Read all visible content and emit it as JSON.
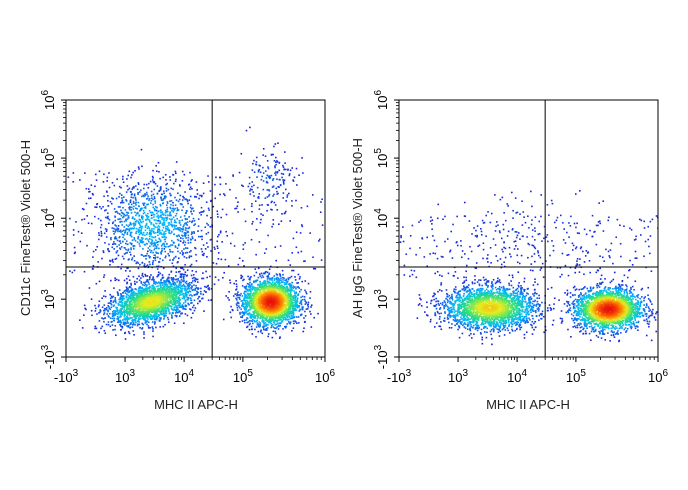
{
  "chart_data": [
    {
      "type": "scatter",
      "subtype": "flow-cytometry-density-plot",
      "xlabel": "MHC II APC-H",
      "ylabel": "CD11c FineTest® Violet 500-H",
      "x_scale": "biexponential",
      "y_scale": "biexponential",
      "xlim": [
        -1000,
        1000000
      ],
      "ylim": [
        -1000,
        1000000
      ],
      "x_ticks": [
        {
          "value": -1000,
          "base": "-10",
          "exp": "3"
        },
        {
          "value": 1000,
          "base": "10",
          "exp": "3"
        },
        {
          "value": 10000,
          "base": "10",
          "exp": "4"
        },
        {
          "value": 100000,
          "base": "10",
          "exp": "5"
        },
        {
          "value": 1000000,
          "base": "10",
          "exp": "6"
        }
      ],
      "y_ticks": [
        {
          "value": -1000,
          "base": "-10",
          "exp": "3"
        },
        {
          "value": 1000,
          "base": "10",
          "exp": "3"
        },
        {
          "value": 10000,
          "base": "10",
          "exp": "4"
        },
        {
          "value": 100000,
          "base": "10",
          "exp": "5"
        },
        {
          "value": 1000000,
          "base": "10",
          "exp": "6"
        }
      ],
      "quadrant_gate": {
        "x": 30000,
        "y": 2500
      },
      "populations": [
        {
          "name": "MHC II low / CD11c low",
          "center": [
            2800,
            900
          ],
          "relative_density": 0.55
        },
        {
          "name": "MHC II high / CD11c low",
          "center": [
            220000,
            900
          ],
          "relative_density": 1.0
        },
        {
          "name": "CD11c positive scatter",
          "center": [
            3000,
            8000
          ],
          "relative_density": 0.25
        },
        {
          "name": "MHC II high / CD11c high",
          "center": [
            200000,
            40000
          ],
          "relative_density": 0.06
        }
      ],
      "grid": false,
      "colormap": [
        "#1a1ad6",
        "#00b7ff",
        "#29e07a",
        "#e6ec1e",
        "#ff7a00",
        "#e8120c"
      ]
    },
    {
      "type": "scatter",
      "subtype": "flow-cytometry-density-plot",
      "xlabel": "MHC II APC-H",
      "ylabel": "AH IgG FineTest® Violet 500-H",
      "x_scale": "biexponential",
      "y_scale": "biexponential",
      "xlim": [
        -1000,
        1000000
      ],
      "ylim": [
        -1000,
        1000000
      ],
      "x_ticks": [
        {
          "value": -1000,
          "base": "-10",
          "exp": "3"
        },
        {
          "value": 1000,
          "base": "10",
          "exp": "3"
        },
        {
          "value": 10000,
          "base": "10",
          "exp": "4"
        },
        {
          "value": 100000,
          "base": "10",
          "exp": "5"
        },
        {
          "value": 1000000,
          "base": "10",
          "exp": "6"
        }
      ],
      "y_ticks": [
        {
          "value": -1000,
          "base": "-10",
          "exp": "3"
        },
        {
          "value": 1000,
          "base": "10",
          "exp": "3"
        },
        {
          "value": 10000,
          "base": "10",
          "exp": "4"
        },
        {
          "value": 100000,
          "base": "10",
          "exp": "5"
        },
        {
          "value": 1000000,
          "base": "10",
          "exp": "6"
        }
      ],
      "quadrant_gate": {
        "x": 30000,
        "y": 2500
      },
      "populations": [
        {
          "name": "MHC II low / isotype low",
          "center": [
            3500,
            700
          ],
          "relative_density": 0.6
        },
        {
          "name": "MHC II high / isotype low",
          "center": [
            250000,
            650
          ],
          "relative_density": 1.0
        },
        {
          "name": "sparse upper events",
          "center": [
            20000,
            8000
          ],
          "relative_density": 0.03
        }
      ],
      "grid": false,
      "colormap": [
        "#1a1ad6",
        "#00b7ff",
        "#29e07a",
        "#e6ec1e",
        "#ff7a00",
        "#e8120c"
      ]
    }
  ]
}
